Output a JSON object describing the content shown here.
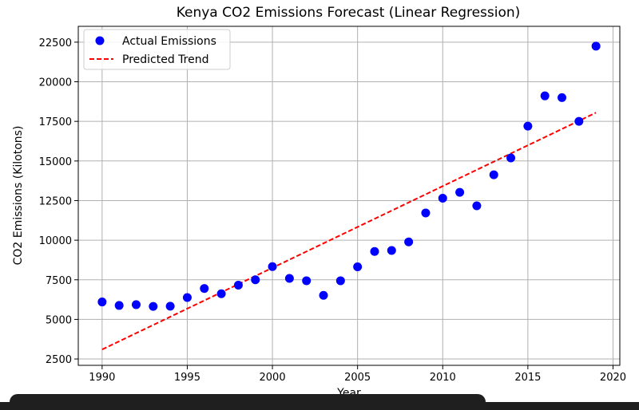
{
  "chart_data": {
    "type": "scatter",
    "title": "Kenya CO2 Emissions Forecast (Linear Regression)",
    "xlabel": "Year",
    "ylabel": "CO2 Emissions (Kilotons)",
    "xlim": [
      1988.6,
      2020.4
    ],
    "ylim": [
      2100,
      23500
    ],
    "xticks": [
      1990,
      1995,
      2000,
      2005,
      2010,
      2015,
      2020
    ],
    "yticks": [
      2500,
      5000,
      7500,
      10000,
      12500,
      15000,
      17500,
      20000,
      22500
    ],
    "grid": true,
    "legend_position": "top-left",
    "series": [
      {
        "name": "Actual Emissions",
        "kind": "scatter",
        "color": "#0000ff",
        "x": [
          1990,
          1991,
          1992,
          1993,
          1994,
          1995,
          1996,
          1997,
          1998,
          1999,
          2000,
          2001,
          2002,
          2003,
          2004,
          2005,
          2006,
          2007,
          2008,
          2009,
          2010,
          2011,
          2012,
          2013,
          2014,
          2015,
          2016,
          2017,
          2018,
          2019
        ],
        "y": [
          6100,
          5880,
          5930,
          5820,
          5830,
          6380,
          6950,
          6620,
          7160,
          7500,
          8330,
          7590,
          7440,
          6520,
          7440,
          8320,
          9290,
          9350,
          9890,
          11720,
          12650,
          13020,
          12170,
          14130,
          15190,
          17200,
          19110,
          19000,
          17500,
          22250
        ]
      },
      {
        "name": "Predicted Trend",
        "kind": "line",
        "style": "dashed",
        "color": "#ff0000",
        "x": [
          1990,
          2019
        ],
        "y": [
          3100,
          18050
        ]
      }
    ]
  }
}
